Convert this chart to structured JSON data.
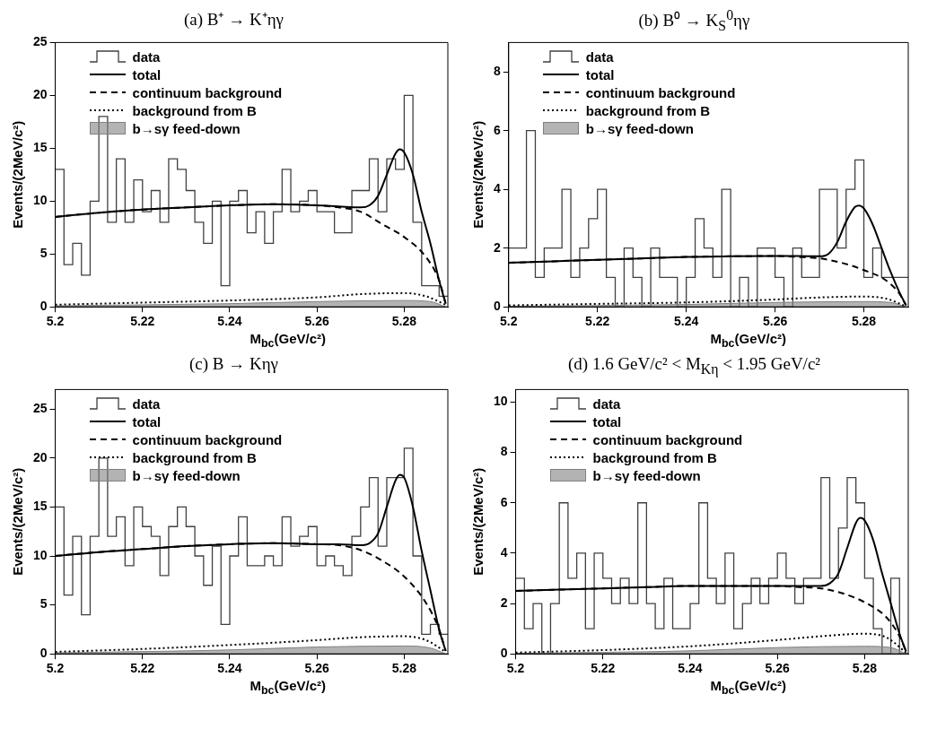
{
  "chart_data": [
    {
      "type": "histogram",
      "title": "(a) B⁺ → K⁺ηγ",
      "xlabel": "M$_{bc}$(GeV/c²)",
      "ylabel": "Events/(2MeV/c²)",
      "legend": "top left",
      "xlim": [
        5.2,
        5.29
      ],
      "xticks": [
        5.2,
        5.22,
        5.24,
        5.26,
        5.28
      ],
      "ylim": [
        0,
        25
      ],
      "yticks": [
        0,
        5,
        10,
        15,
        20,
        25
      ],
      "bins": [
        5.2,
        5.202,
        5.204,
        5.206,
        5.208,
        5.21,
        5.212,
        5.214,
        5.216,
        5.218,
        5.22,
        5.222,
        5.224,
        5.226,
        5.228,
        5.23,
        5.232,
        5.234,
        5.236,
        5.238,
        5.24,
        5.242,
        5.244,
        5.246,
        5.248,
        5.25,
        5.252,
        5.254,
        5.256,
        5.258,
        5.26,
        5.262,
        5.264,
        5.266,
        5.268,
        5.27,
        5.272,
        5.274,
        5.276,
        5.278,
        5.28,
        5.282,
        5.284,
        5.286,
        5.288,
        5.29
      ],
      "series": [
        {
          "name": "data",
          "type": "histogram",
          "color": "#404040",
          "values": [
            13,
            4,
            6,
            3,
            10,
            18,
            8,
            14,
            8,
            12,
            9,
            11,
            8,
            14,
            13,
            11,
            8,
            6,
            10,
            2,
            10,
            11,
            7,
            9,
            6,
            9,
            13,
            9,
            10,
            11,
            9,
            9,
            7,
            7,
            11,
            11,
            14,
            9,
            14,
            13,
            20,
            8,
            2,
            2,
            1
          ]
        },
        {
          "name": "total",
          "type": "line",
          "line_style": "solid",
          "color": "#000000",
          "x": [
            5.2,
            5.21,
            5.22,
            5.23,
            5.24,
            5.25,
            5.26,
            5.265,
            5.27,
            5.272,
            5.274,
            5.276,
            5.278,
            5.279,
            5.28,
            5.282,
            5.284,
            5.286,
            5.288,
            5.2895
          ],
          "values": [
            8.5,
            8.9,
            9.2,
            9.4,
            9.6,
            9.7,
            9.6,
            9.5,
            9.4,
            9.6,
            10.5,
            12.5,
            14.5,
            14.9,
            14.6,
            12.5,
            9,
            6,
            2.5,
            0.3
          ]
        },
        {
          "name": "continuum background",
          "type": "line",
          "line_style": "dashed",
          "color": "#000000",
          "x": [
            5.2,
            5.21,
            5.22,
            5.23,
            5.24,
            5.25,
            5.26,
            5.265,
            5.27,
            5.275,
            5.28,
            5.285,
            5.288,
            5.2895
          ],
          "values": [
            8.5,
            8.9,
            9.2,
            9.4,
            9.6,
            9.7,
            9.6,
            9.4,
            9.0,
            7.8,
            6.6,
            4.7,
            2.5,
            0.3
          ]
        },
        {
          "name": "background from B",
          "type": "line",
          "line_style": "dotted",
          "color": "#000000",
          "x": [
            5.2,
            5.22,
            5.24,
            5.26,
            5.27,
            5.28,
            5.285,
            5.2895
          ],
          "values": [
            0.2,
            0.4,
            0.6,
            0.9,
            1.2,
            1.3,
            1.0,
            0.2
          ]
        },
        {
          "name": "b→sγ feed-down",
          "type": "area",
          "color": "#808080",
          "x": [
            5.2,
            5.24,
            5.26,
            5.28,
            5.286,
            5.2895
          ],
          "values": [
            0.1,
            0.3,
            0.5,
            0.6,
            0.5,
            0
          ]
        }
      ]
    },
    {
      "type": "histogram",
      "title": "(b) B⁰ → K$_{S}$$^{0}$ηγ",
      "xlabel": "M$_{bc}$(GeV/c²)",
      "ylabel": "Events/(2MeV/c²)",
      "legend": "top left",
      "xlim": [
        5.2,
        5.29
      ],
      "xticks": [
        5.2,
        5.22,
        5.24,
        5.26,
        5.28
      ],
      "ylim": [
        0,
        9
      ],
      "yticks": [
        0,
        2,
        4,
        6,
        8
      ],
      "bins": [
        5.2,
        5.202,
        5.204,
        5.206,
        5.208,
        5.21,
        5.212,
        5.214,
        5.216,
        5.218,
        5.22,
        5.222,
        5.224,
        5.226,
        5.228,
        5.23,
        5.232,
        5.234,
        5.236,
        5.238,
        5.24,
        5.242,
        5.244,
        5.246,
        5.248,
        5.25,
        5.252,
        5.254,
        5.256,
        5.258,
        5.26,
        5.262,
        5.264,
        5.266,
        5.268,
        5.27,
        5.272,
        5.274,
        5.276,
        5.278,
        5.28,
        5.282,
        5.284,
        5.286,
        5.288,
        5.29
      ],
      "series": [
        {
          "name": "data",
          "type": "histogram",
          "color": "#404040",
          "values": [
            2,
            2,
            6,
            1,
            2,
            2,
            4,
            1,
            2,
            3,
            4,
            1,
            0,
            2,
            1,
            0,
            2,
            1,
            1,
            0,
            1,
            3,
            2,
            1,
            4,
            0,
            1,
            0,
            2,
            2,
            1,
            0,
            2,
            1,
            1,
            4,
            4,
            2,
            4,
            5,
            1,
            2,
            1,
            1,
            1
          ]
        },
        {
          "name": "total",
          "type": "line",
          "line_style": "solid",
          "color": "#000000",
          "x": [
            5.2,
            5.21,
            5.22,
            5.23,
            5.24,
            5.25,
            5.26,
            5.265,
            5.27,
            5.272,
            5.274,
            5.276,
            5.278,
            5.279,
            5.28,
            5.282,
            5.284,
            5.286,
            5.288,
            5.2895
          ],
          "values": [
            1.5,
            1.55,
            1.6,
            1.65,
            1.7,
            1.72,
            1.73,
            1.73,
            1.72,
            1.8,
            2.2,
            2.9,
            3.4,
            3.45,
            3.35,
            2.8,
            2.0,
            1.2,
            0.5,
            0.05
          ]
        },
        {
          "name": "continuum background",
          "type": "line",
          "line_style": "dashed",
          "color": "#000000",
          "x": [
            5.2,
            5.21,
            5.22,
            5.23,
            5.24,
            5.25,
            5.26,
            5.265,
            5.27,
            5.275,
            5.28,
            5.285,
            5.288,
            5.2895
          ],
          "values": [
            1.5,
            1.55,
            1.6,
            1.65,
            1.7,
            1.72,
            1.73,
            1.7,
            1.65,
            1.5,
            1.25,
            0.9,
            0.45,
            0.05
          ]
        },
        {
          "name": "background from B",
          "type": "line",
          "line_style": "dotted",
          "color": "#000000",
          "x": [
            5.2,
            5.22,
            5.24,
            5.26,
            5.27,
            5.28,
            5.285,
            5.2895
          ],
          "values": [
            0.05,
            0.1,
            0.15,
            0.25,
            0.32,
            0.35,
            0.28,
            0.02
          ]
        },
        {
          "name": "b→sγ feed-down",
          "type": "area",
          "color": "#808080",
          "x": [
            5.2,
            5.24,
            5.26,
            5.28,
            5.286,
            5.2895
          ],
          "values": [
            0.02,
            0.08,
            0.15,
            0.18,
            0.15,
            0
          ]
        }
      ]
    },
    {
      "type": "histogram",
      "title": "(c) B → Kηγ",
      "xlabel": "M$_{bc}$(GeV/c²)",
      "ylabel": "Events/(2MeV/c²)",
      "legend": "top left",
      "xlim": [
        5.2,
        5.29
      ],
      "xticks": [
        5.2,
        5.22,
        5.24,
        5.26,
        5.28
      ],
      "ylim": [
        0,
        27
      ],
      "yticks": [
        0,
        5,
        10,
        15,
        20,
        25
      ],
      "bins": [
        5.2,
        5.202,
        5.204,
        5.206,
        5.208,
        5.21,
        5.212,
        5.214,
        5.216,
        5.218,
        5.22,
        5.222,
        5.224,
        5.226,
        5.228,
        5.23,
        5.232,
        5.234,
        5.236,
        5.238,
        5.24,
        5.242,
        5.244,
        5.246,
        5.248,
        5.25,
        5.252,
        5.254,
        5.256,
        5.258,
        5.26,
        5.262,
        5.264,
        5.266,
        5.268,
        5.27,
        5.272,
        5.274,
        5.276,
        5.278,
        5.28,
        5.282,
        5.284,
        5.286,
        5.288,
        5.29
      ],
      "series": [
        {
          "name": "data",
          "type": "histogram",
          "color": "#404040",
          "values": [
            15,
            6,
            12,
            4,
            12,
            20,
            12,
            14,
            9,
            15,
            13,
            12,
            8,
            13,
            15,
            13,
            10,
            7,
            11,
            3,
            10,
            14,
            9,
            9,
            10,
            9,
            14,
            11,
            12,
            13,
            9,
            10,
            9,
            8,
            12,
            15,
            18,
            11,
            18,
            18,
            21,
            10,
            2,
            3,
            2
          ]
        },
        {
          "name": "total",
          "type": "line",
          "line_style": "solid",
          "color": "#000000",
          "x": [
            5.2,
            5.21,
            5.22,
            5.23,
            5.24,
            5.25,
            5.26,
            5.265,
            5.27,
            5.272,
            5.274,
            5.276,
            5.278,
            5.279,
            5.28,
            5.282,
            5.284,
            5.286,
            5.288,
            5.2895
          ],
          "values": [
            10,
            10.4,
            10.7,
            11,
            11.2,
            11.3,
            11.2,
            11.2,
            11.1,
            11.3,
            12.3,
            15,
            17.7,
            18.3,
            18,
            15,
            10.5,
            6.5,
            2.5,
            0.3
          ]
        },
        {
          "name": "continuum background",
          "type": "line",
          "line_style": "dashed",
          "color": "#000000",
          "x": [
            5.2,
            5.21,
            5.22,
            5.23,
            5.24,
            5.25,
            5.26,
            5.265,
            5.27,
            5.275,
            5.28,
            5.285,
            5.288,
            5.2895
          ],
          "values": [
            10,
            10.4,
            10.7,
            11,
            11.2,
            11.3,
            11.2,
            11.1,
            10.6,
            9.5,
            7.9,
            5.2,
            2.5,
            0.3
          ]
        },
        {
          "name": "background from B",
          "type": "line",
          "line_style": "dotted",
          "color": "#000000",
          "x": [
            5.2,
            5.22,
            5.24,
            5.26,
            5.27,
            5.28,
            5.285,
            5.2895
          ],
          "values": [
            0.2,
            0.5,
            0.9,
            1.4,
            1.7,
            1.8,
            1.4,
            0.2
          ]
        },
        {
          "name": "b→sγ feed-down",
          "type": "area",
          "color": "#808080",
          "x": [
            5.2,
            5.24,
            5.26,
            5.28,
            5.286,
            5.2895
          ],
          "values": [
            0.1,
            0.4,
            0.7,
            0.8,
            0.6,
            0
          ]
        }
      ]
    },
    {
      "type": "histogram",
      "title": "(d) 1.6 GeV/c² < M$_{Kη}$ < 1.95 GeV/c²",
      "xlabel": "M$_{bc}$(GeV/c²)",
      "ylabel": "Events/(2MeV/c²)",
      "legend": "top left",
      "xlim": [
        5.2,
        5.29
      ],
      "xticks": [
        5.2,
        5.22,
        5.24,
        5.26,
        5.28
      ],
      "ylim": [
        0,
        10.5
      ],
      "yticks": [
        0,
        2,
        4,
        6,
        8,
        10
      ],
      "bins": [
        5.2,
        5.202,
        5.204,
        5.206,
        5.208,
        5.21,
        5.212,
        5.214,
        5.216,
        5.218,
        5.22,
        5.222,
        5.224,
        5.226,
        5.228,
        5.23,
        5.232,
        5.234,
        5.236,
        5.238,
        5.24,
        5.242,
        5.244,
        5.246,
        5.248,
        5.25,
        5.252,
        5.254,
        5.256,
        5.258,
        5.26,
        5.262,
        5.264,
        5.266,
        5.268,
        5.27,
        5.272,
        5.274,
        5.276,
        5.278,
        5.28,
        5.282,
        5.284,
        5.286,
        5.288,
        5.29
      ],
      "series": [
        {
          "name": "data",
          "type": "histogram",
          "color": "#404040",
          "values": [
            3,
            1,
            2,
            0,
            2,
            6,
            3,
            4,
            1,
            4,
            3,
            2,
            3,
            2,
            6,
            2,
            1,
            3,
            1,
            1,
            2,
            6,
            3,
            2,
            4,
            1,
            2,
            3,
            2,
            3,
            4,
            3,
            2,
            3,
            3,
            7,
            3,
            5,
            7,
            6,
            3,
            1,
            0,
            3,
            0
          ]
        },
        {
          "name": "total",
          "type": "line",
          "line_style": "solid",
          "color": "#000000",
          "x": [
            5.2,
            5.21,
            5.22,
            5.23,
            5.24,
            5.25,
            5.26,
            5.265,
            5.27,
            5.272,
            5.274,
            5.276,
            5.278,
            5.279,
            5.28,
            5.282,
            5.284,
            5.286,
            5.288,
            5.2895
          ],
          "values": [
            2.5,
            2.55,
            2.6,
            2.65,
            2.7,
            2.7,
            2.7,
            2.7,
            2.7,
            2.8,
            3.2,
            4.2,
            5.2,
            5.4,
            5.3,
            4.5,
            3.2,
            2.0,
            0.8,
            0.1
          ]
        },
        {
          "name": "continuum background",
          "type": "line",
          "line_style": "dashed",
          "color": "#000000",
          "x": [
            5.2,
            5.21,
            5.22,
            5.23,
            5.24,
            5.25,
            5.26,
            5.265,
            5.27,
            5.275,
            5.28,
            5.285,
            5.288,
            5.2895
          ],
          "values": [
            2.5,
            2.55,
            2.6,
            2.65,
            2.7,
            2.7,
            2.7,
            2.65,
            2.6,
            2.4,
            2.05,
            1.45,
            0.7,
            0.1
          ]
        },
        {
          "name": "background from B",
          "type": "line",
          "line_style": "dotted",
          "color": "#000000",
          "x": [
            5.2,
            5.22,
            5.24,
            5.26,
            5.27,
            5.28,
            5.285,
            5.2895
          ],
          "values": [
            0.05,
            0.15,
            0.3,
            0.55,
            0.7,
            0.8,
            0.65,
            0.05
          ]
        },
        {
          "name": "b→sγ feed-down",
          "type": "area",
          "color": "#808080",
          "x": [
            5.2,
            5.24,
            5.26,
            5.28,
            5.286,
            5.2895
          ],
          "values": [
            0.02,
            0.12,
            0.25,
            0.3,
            0.25,
            0
          ]
        }
      ]
    }
  ]
}
